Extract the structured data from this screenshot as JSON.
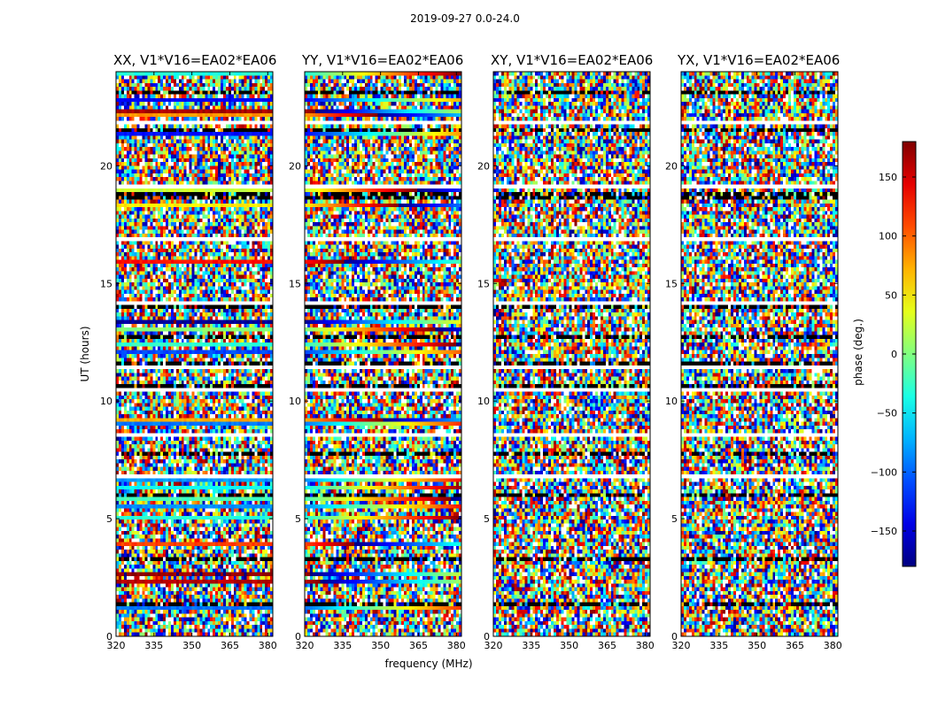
{
  "chart_data": {
    "type": "heatmap",
    "suptitle": "2019-09-27 0.0-24.0",
    "xlabel": "frequency (MHz)",
    "ylabel": "UT (hours)",
    "xlim": [
      320,
      382
    ],
    "ylim": [
      0,
      24
    ],
    "xticks": [
      320,
      335,
      350,
      365,
      380
    ],
    "yticks": [
      0,
      5,
      10,
      15,
      20
    ],
    "panels": [
      {
        "title": "XX, V1*V16=EA02*EA06",
        "polarization": "XX"
      },
      {
        "title": "YY, V1*V16=EA02*EA06",
        "polarization": "YY"
      },
      {
        "title": "XY, V1*V16=EA02*EA06",
        "polarization": "XY"
      },
      {
        "title": "YX, V1*V16=EA02*EA06",
        "polarization": "YX"
      }
    ],
    "colorbar": {
      "label": "phase (deg.)",
      "range": [
        -180,
        180
      ],
      "ticks": [
        -150,
        -100,
        -50,
        0,
        50,
        100,
        150
      ],
      "tick_labels": [
        "−150",
        "−100",
        "−50",
        "0",
        "50",
        "100",
        "150"
      ],
      "colormap": "jet"
    }
  },
  "colors": {
    "frame": "#000000",
    "background": "#ffffff"
  }
}
